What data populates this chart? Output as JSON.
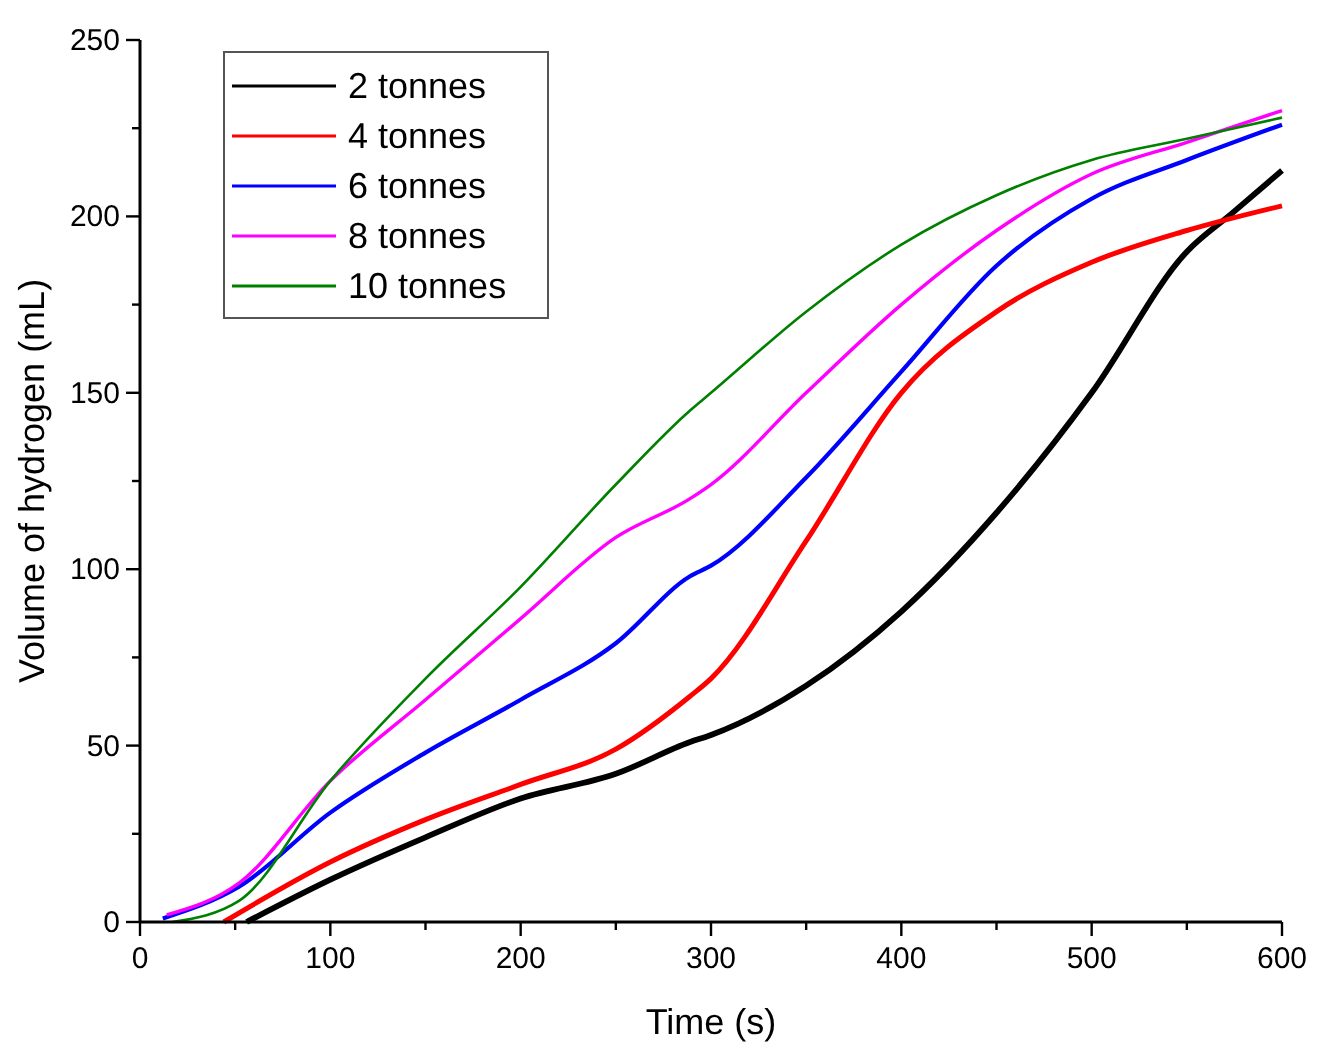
{
  "chart_data": {
    "type": "line",
    "xlabel": "Time (s)",
    "ylabel": "Volume of hydrogen (mL)",
    "xlim": [
      0,
      600
    ],
    "ylim": [
      0,
      250
    ],
    "xticks": [
      0,
      {
        "value": 50,
        "label": null
      },
      100,
      {
        "value": 150,
        "label": null
      },
      200,
      {
        "value": 250,
        "label": null
      },
      300,
      {
        "value": 350,
        "label": null
      },
      400,
      {
        "value": 450,
        "label": null
      },
      500,
      {
        "value": 550,
        "label": null
      },
      600
    ],
    "yticks": [
      0,
      {
        "value": 25,
        "label": null
      },
      50,
      {
        "value": 75,
        "label": null
      },
      100,
      {
        "value": 125,
        "label": null
      },
      150,
      {
        "value": 175,
        "label": null
      },
      200,
      {
        "value": 225,
        "label": null
      },
      250
    ],
    "grid": false,
    "legend": "top left",
    "line_style": "solid",
    "marker": "none",
    "series": [
      {
        "name": "2 tonnes",
        "color": "#000000",
        "x": [
          56,
          100,
          150,
          200,
          250,
          289,
          300,
          350,
          400,
          450,
          500,
          550,
          574,
          600
        ],
        "values": [
          0,
          12,
          24,
          35,
          42,
          51,
          53,
          67,
          88,
          116,
          150,
          190,
          201,
          213
        ]
      },
      {
        "name": "4 tonnes",
        "color": "#ff0000",
        "x": [
          44,
          100,
          150,
          200,
          250,
          289,
          300,
          350,
          400,
          450,
          500,
          550,
          600
        ],
        "values": [
          0,
          17,
          29,
          39,
          49,
          64,
          69,
          108,
          150,
          173,
          187,
          196,
          203
        ]
      },
      {
        "name": "6 tonnes",
        "color": "#0000ff",
        "x": [
          12,
          52,
          100,
          150,
          200,
          250,
          289,
          300,
          350,
          400,
          450,
          500,
          550,
          600
        ],
        "values": [
          1,
          10,
          31,
          48,
          63,
          79,
          98,
          101,
          126,
          156,
          186,
          205,
          216,
          226
        ]
      },
      {
        "name": "8 tonnes",
        "color": "#ff00ff",
        "x": [
          14,
          52,
          100,
          150,
          200,
          250,
          289,
          300,
          350,
          400,
          450,
          500,
          550,
          600
        ],
        "values": [
          2,
          11,
          40,
          63,
          86,
          109,
          120,
          124,
          150,
          175,
          196,
          212,
          221,
          230
        ]
      },
      {
        "name": "10 tonnes",
        "color": "#008000",
        "x": [
          17,
          52,
          100,
          150,
          200,
          250,
          289,
          300,
          350,
          400,
          450,
          500,
          550,
          600
        ],
        "values": [
          0,
          6,
          40,
          69,
          95,
          124,
          145,
          150,
          173,
          192,
          206,
          216,
          222,
          228
        ]
      }
    ]
  }
}
